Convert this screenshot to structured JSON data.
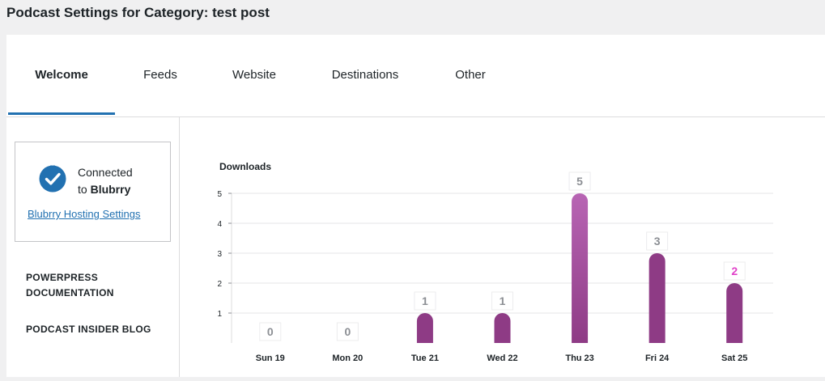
{
  "page": {
    "title": "Podcast Settings for Category: test post"
  },
  "tabs": [
    {
      "label": "Welcome",
      "active": true
    },
    {
      "label": "Feeds",
      "active": false
    },
    {
      "label": "Website",
      "active": false
    },
    {
      "label": "Destinations",
      "active": false
    },
    {
      "label": "Other",
      "active": false
    }
  ],
  "sidebar": {
    "connect": {
      "line1": "Connected",
      "line2_prefix": "to ",
      "line2_brand": "Blubrry",
      "link": "Blubrry Hosting Settings"
    },
    "links": [
      {
        "label": "POWERPRESS DOCUMENTATION"
      },
      {
        "label": "PODCAST INSIDER BLOG"
      }
    ]
  },
  "colors": {
    "accent": "#2271b1",
    "bar": "#8e3b85",
    "bar_highlight": "#b865b4",
    "label_highlight": "#e040c8",
    "label": "#8c8f94"
  },
  "chart_data": {
    "type": "bar",
    "title": "Downloads",
    "categories": [
      "Sun 19",
      "Mon 20",
      "Tue 21",
      "Wed 22",
      "Thu 23",
      "Fri 24",
      "Sat 25"
    ],
    "values": [
      0,
      0,
      1,
      1,
      5,
      3,
      2
    ],
    "ylim": [
      0,
      5
    ],
    "yticks": [
      1,
      2,
      3,
      4,
      5
    ],
    "grid": true,
    "data_labels": true,
    "highlighted_bar": "Thu 23",
    "highlighted_label": "Sat 25"
  }
}
